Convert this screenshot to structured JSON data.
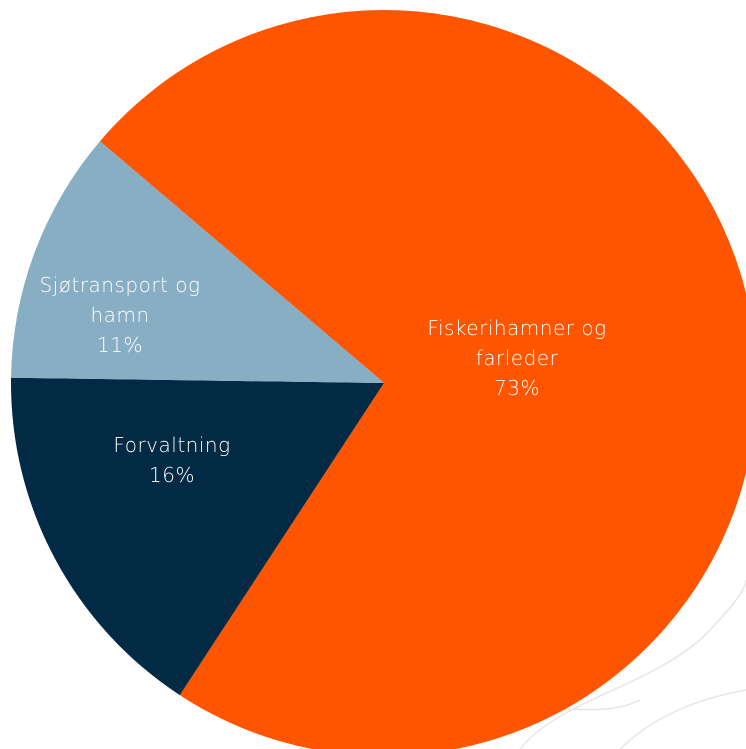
{
  "chart_data": {
    "type": "pie",
    "categories": [
      "Fiskerihamner og farleder",
      "Forvaltning",
      "Sjøtransport og hamn"
    ],
    "values": [
      73,
      16,
      11
    ],
    "value_labels": [
      "73%",
      "16%",
      "11%"
    ],
    "colors": [
      "#ff5500",
      "#022a45",
      "#88aec4"
    ]
  }
}
